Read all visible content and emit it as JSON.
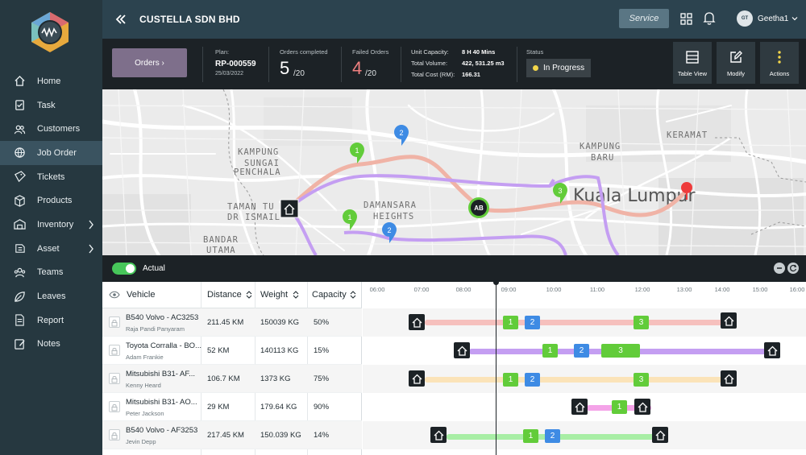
{
  "sidebar": {
    "items": [
      {
        "label": "Home",
        "icon": "home-icon"
      },
      {
        "label": "Task",
        "icon": "task-icon"
      },
      {
        "label": "Customers",
        "icon": "customers-icon"
      },
      {
        "label": "Job Order",
        "icon": "job-order-icon",
        "active": true
      },
      {
        "label": "Tickets",
        "icon": "ticket-icon"
      },
      {
        "label": "Products",
        "icon": "box-icon"
      },
      {
        "label": "Inventory",
        "icon": "inventory-icon",
        "expandable": true
      },
      {
        "label": "Asset",
        "icon": "asset-icon",
        "expandable": true
      },
      {
        "label": "Teams",
        "icon": "teams-icon"
      },
      {
        "label": "Leaves",
        "icon": "leaves-icon"
      },
      {
        "label": "Report",
        "icon": "report-icon"
      },
      {
        "label": "Notes",
        "icon": "notes-icon"
      }
    ]
  },
  "header": {
    "company": "CUSTELLA SDN BHD",
    "service_label": "Service",
    "user_initials": "GT",
    "user_name": "Geetha1"
  },
  "summary": {
    "orders_button": "Orders ›",
    "plan_label": "Plan:",
    "plan_id": "RP-000559",
    "plan_date": "25/03/2022",
    "completed_label": "Orders completed",
    "completed_value": "5",
    "completed_total": "/20",
    "failed_label": "Failed Orders",
    "failed_value": "4",
    "failed_total": "/20",
    "capacity_label": "Unit Capacity:",
    "capacity_value": "8 H 40 Mins",
    "volume_label": "Total Volume:",
    "volume_value": "422, 531.25 m3",
    "cost_label": "Total Cost (RM):",
    "cost_value": "166.31",
    "status_label": "Status",
    "status_value": "In Progress",
    "table_view": "Table View",
    "modify": "Modify",
    "actions": "Actions"
  },
  "map": {
    "labels": {
      "kampung_sungai": "KAMPUNG",
      "sungai": "SUNGAI",
      "penchala": "PENCHALA",
      "taman_tun": "TAMAN TU",
      "dr_ismail": "DR ISMAIL",
      "damansara": "DAMANSARA",
      "heights": "HEIGHTS",
      "bandar": "BANDAR",
      "utama": "UTAMA",
      "kampung_baru": "KAMPUNG",
      "baru": "BARU",
      "keramat": "KERAMAT",
      "city": "Kuala Lumpur"
    },
    "vehicle_marker": "AB",
    "pins": [
      "1",
      "2",
      "1",
      "2",
      "3"
    ]
  },
  "timeline": {
    "toggle_label": "Actual",
    "hours": [
      "06:00",
      "07:00",
      "08:00",
      "09:00",
      "10:00",
      "11:00",
      "12:00",
      "13:00",
      "14:00",
      "15:00",
      "16:00"
    ]
  },
  "table": {
    "headers": {
      "vehicle": "Vehicle",
      "distance": "Distance",
      "weight": "Weight",
      "capacity": "Capacity"
    },
    "rows": [
      {
        "vehicle": "B540 Volvo - AC3253",
        "driver": "Raja Pandi Panyaram",
        "distance": "211.45 KM",
        "weight": "150039 KG",
        "capacity": "50%",
        "color": "#f6c0bd"
      },
      {
        "vehicle": "Toyota Corralla - BO...",
        "driver": "Adam Frankie",
        "distance": "52 KM",
        "weight": "140113 KG",
        "capacity": "15%",
        "color": "#c49ef2"
      },
      {
        "vehicle": "Mitsubishi B31- AF...",
        "driver": "Kenny Heard",
        "distance": "106.7 KM",
        "weight": "1373 KG",
        "capacity": "75%",
        "color": "#fbe3b8"
      },
      {
        "vehicle": "Mitsubishi B31- AO...",
        "driver": "Peter Jackson",
        "distance": "29 KM",
        "weight": "179.64 KG",
        "capacity": "90%",
        "color": "#f4a3e8"
      },
      {
        "vehicle": "B540 Volvo - AF3253",
        "driver": "Jevin Depp",
        "distance": "217.45 KM",
        "weight": "150.039 KG",
        "capacity": "14%",
        "color": "#a8eea5"
      }
    ]
  },
  "gantt_stops": {
    "r0": [
      "1",
      "2",
      "3"
    ],
    "r1": [
      "1",
      "2",
      "3"
    ],
    "r2": [
      "1",
      "2",
      "3"
    ],
    "r3": [
      "1"
    ],
    "r4": [
      "1",
      "2"
    ]
  },
  "colors": {
    "sidebar": "#263840",
    "header": "#2c434f",
    "summary": "#1c2226",
    "stop_green": "#62cc3a",
    "stop_blue": "#3e8be4",
    "status_yellow": "#f3d64a",
    "failed_red": "#f08080"
  }
}
